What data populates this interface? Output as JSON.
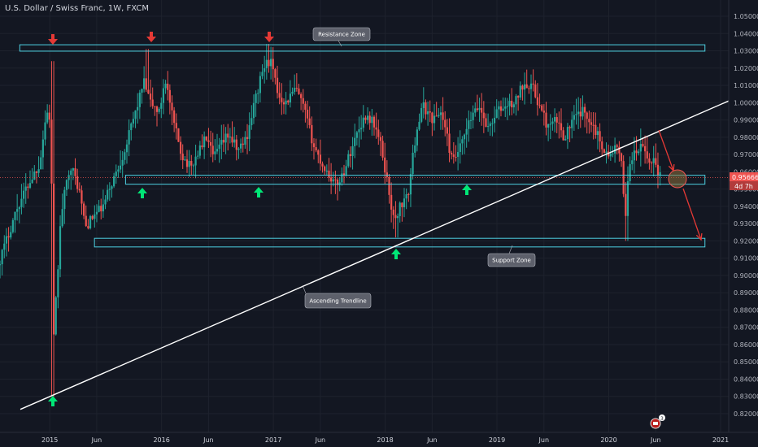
{
  "header": {
    "title": "U.S. Dollar / Swiss Franc, 1W, FXCM"
  },
  "colors": {
    "background": "#131722",
    "up": "#26a69a",
    "down": "#ef5350",
    "zone": "#4dd0e1",
    "trendline": "#ffffff",
    "price_badge": "#ef5350",
    "arrow_red": "#e53935",
    "arrow_green": "#00e676"
  },
  "chart_data": {
    "type": "candlestick",
    "symbol": "USDCHF",
    "timeframe": "1W",
    "source": "FXCM",
    "x_range": [
      2014.55,
      2021.0
    ],
    "ylim": [
      0.815,
      1.055
    ],
    "yticks": [
      "1.05000",
      "1.04000",
      "1.03000",
      "1.02000",
      "1.01000",
      "1.00000",
      "0.99000",
      "0.98000",
      "0.97000",
      "0.96000",
      "0.95000",
      "0.94000",
      "0.93000",
      "0.92000",
      "0.91000",
      "0.90000",
      "0.89000",
      "0.88000",
      "0.87000",
      "0.86000",
      "0.85000",
      "0.84000",
      "0.83000",
      "0.82000"
    ],
    "xticks": [
      {
        "label": "2015",
        "x": 2015.0
      },
      {
        "label": "Jun",
        "x": 2015.42
      },
      {
        "label": "2016",
        "x": 2016.0
      },
      {
        "label": "Jun",
        "x": 2016.42
      },
      {
        "label": "2017",
        "x": 2017.0
      },
      {
        "label": "Jun",
        "x": 2017.42
      },
      {
        "label": "2018",
        "x": 2018.0
      },
      {
        "label": "Jun",
        "x": 2018.42
      },
      {
        "label": "2019",
        "x": 2019.0
      },
      {
        "label": "Jun",
        "x": 2019.42
      },
      {
        "label": "2020",
        "x": 2020.0
      },
      {
        "label": "Jun",
        "x": 2020.42
      },
      {
        "label": "2021",
        "x": 2021.0
      }
    ],
    "price_path": [
      [
        2014.55,
        0.905
      ],
      [
        2014.62,
        0.918
      ],
      [
        2014.72,
        0.938
      ],
      [
        2014.82,
        0.952
      ],
      [
        2014.93,
        0.965
      ],
      [
        2014.99,
        0.995
      ],
      [
        2015.03,
        0.99
      ],
      [
        2015.05,
        0.858
      ],
      [
        2015.12,
        0.935
      ],
      [
        2015.2,
        0.965
      ],
      [
        2015.28,
        0.95
      ],
      [
        2015.34,
        0.928
      ],
      [
        2015.42,
        0.935
      ],
      [
        2015.5,
        0.94
      ],
      [
        2015.55,
        0.95
      ],
      [
        2015.63,
        0.962
      ],
      [
        2015.7,
        0.975
      ],
      [
        2015.8,
        0.998
      ],
      [
        2015.86,
        1.012
      ],
      [
        2015.92,
        1.0
      ],
      [
        2016.0,
        0.994
      ],
      [
        2016.05,
        1.015
      ],
      [
        2016.12,
        0.99
      ],
      [
        2016.2,
        0.97
      ],
      [
        2016.28,
        0.962
      ],
      [
        2016.35,
        0.972
      ],
      [
        2016.42,
        0.98
      ],
      [
        2016.48,
        0.968
      ],
      [
        2016.55,
        0.975
      ],
      [
        2016.62,
        0.982
      ],
      [
        2016.7,
        0.972
      ],
      [
        2016.78,
        0.98
      ],
      [
        2016.85,
        1.0
      ],
      [
        2016.93,
        1.02
      ],
      [
        2016.99,
        1.025
      ],
      [
        2017.06,
        1.005
      ],
      [
        2017.13,
        1.0
      ],
      [
        2017.22,
        1.008
      ],
      [
        2017.3,
        0.995
      ],
      [
        2017.38,
        0.975
      ],
      [
        2017.45,
        0.965
      ],
      [
        2017.5,
        0.96
      ],
      [
        2017.58,
        0.952
      ],
      [
        2017.65,
        0.96
      ],
      [
        2017.7,
        0.97
      ],
      [
        2017.78,
        0.985
      ],
      [
        2017.85,
        0.993
      ],
      [
        2017.92,
        0.988
      ],
      [
        2017.98,
        0.975
      ],
      [
        2018.05,
        0.95
      ],
      [
        2018.1,
        0.93
      ],
      [
        2018.15,
        0.94
      ],
      [
        2018.22,
        0.945
      ],
      [
        2018.3,
        0.985
      ],
      [
        2018.36,
        0.998
      ],
      [
        2018.45,
        0.99
      ],
      [
        2018.52,
        0.995
      ],
      [
        2018.58,
        0.978
      ],
      [
        2018.62,
        0.965
      ],
      [
        2018.7,
        0.975
      ],
      [
        2018.78,
        0.99
      ],
      [
        2018.86,
        0.998
      ],
      [
        2018.94,
        0.985
      ],
      [
        2019.02,
        0.995
      ],
      [
        2019.1,
        0.998
      ],
      [
        2019.18,
        1.0
      ],
      [
        2019.26,
        1.012
      ],
      [
        2019.33,
        1.01
      ],
      [
        2019.4,
        0.998
      ],
      [
        2019.48,
        0.985
      ],
      [
        2019.55,
        0.99
      ],
      [
        2019.62,
        0.98
      ],
      [
        2019.7,
        0.99
      ],
      [
        2019.78,
        0.995
      ],
      [
        2019.86,
        0.99
      ],
      [
        2019.94,
        0.978
      ],
      [
        2020.02,
        0.968
      ],
      [
        2020.08,
        0.975
      ],
      [
        2020.13,
        0.965
      ],
      [
        2020.17,
        0.935
      ],
      [
        2020.2,
        0.965
      ],
      [
        2020.25,
        0.97
      ],
      [
        2020.32,
        0.975
      ],
      [
        2020.38,
        0.965
      ],
      [
        2020.42,
        0.968
      ],
      [
        2020.47,
        0.958
      ]
    ],
    "annotations": {
      "resistance_zone": {
        "label": "Resistance Zone",
        "x": [
          2014.55,
          2020.86
        ],
        "y": [
          1.0298,
          1.0335
        ]
      },
      "mid_zone_upper": {
        "x": [
          2015.7,
          2020.86
        ],
        "y": 0.958
      },
      "mid_zone_lower": {
        "x": [
          2015.7,
          2020.86
        ],
        "y": 0.9528
      },
      "support_zone": {
        "label": "Support Zone",
        "x": [
          2015.4,
          2020.86
        ],
        "y": [
          0.9165,
          0.9215
        ]
      },
      "trendline": {
        "label": "Ascending Trendline",
        "from": [
          2014.6,
          0.8225
        ],
        "to": [
          2020.86,
          1.001
        ]
      },
      "projection_circle": {
        "x": 2020.55,
        "y": 0.955
      },
      "projection_arrows": [
        {
          "from": [
            2020.42,
            0.9835
          ],
          "to": [
            2020.52,
            0.96
          ]
        },
        {
          "from": [
            2020.56,
            0.949
          ],
          "to": [
            2020.72,
            0.92
          ]
        }
      ],
      "red_down_arrows": [
        {
          "x": 2015.0,
          "y": 1.0375
        },
        {
          "x": 2015.88,
          "y": 1.0375
        },
        {
          "x": 2016.95,
          "y": 1.0375
        }
      ],
      "green_up_arrows": [
        {
          "x": 2015.8,
          "y": 0.9455
        },
        {
          "x": 2016.83,
          "y": 0.9455
        },
        {
          "x": 2018.07,
          "y": 0.915
        },
        {
          "x": 2018.71,
          "y": 0.947
        },
        {
          "x": 2015.02,
          "y": 0.8255
        }
      ]
    },
    "last_price": "0.95666",
    "countdown": "4d 7h"
  },
  "callouts": {
    "resistance": "Resistance Zone",
    "support": "Support Zone",
    "trendline": "Ascending Trendline"
  },
  "badge": {
    "count": "3"
  }
}
